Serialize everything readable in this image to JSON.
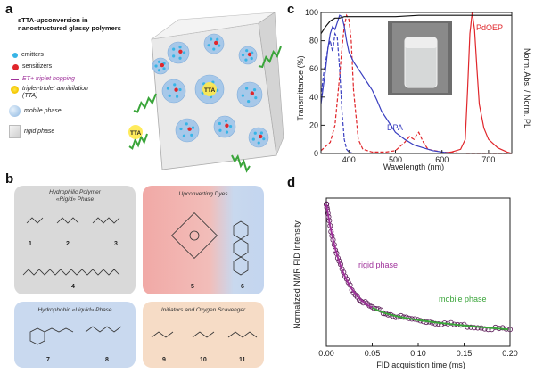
{
  "panels": {
    "a": {
      "letter": "a",
      "title_line1": "sTTA-upconversion in",
      "title_line2": "nanostructured glassy polymers",
      "legend": {
        "emitters": "emitters",
        "sensitizers": "sensitizers",
        "et_hopping": "ET+ triplet hopping",
        "tta_line1": "triplet-triplet annihilation",
        "tta_line2": "(TTA)",
        "mobile": "mobile phase",
        "rigid": "rigid phase"
      },
      "tta_label": "TTA"
    },
    "b": {
      "letter": "b",
      "box_rigid_title_line1": "Hydrophilic Polymer",
      "box_rigid_title_line2": "«Rigid» Phase",
      "box_dyes_title": "Upconverting Dyes",
      "box_liquid_title": "Hydrophobic «Liquid» Phase",
      "box_init_title": "Initiators and Oxygen Scavenger",
      "numbers": [
        "1",
        "2",
        "3",
        "4",
        "5",
        "6",
        "7",
        "8",
        "9",
        "10",
        "11"
      ]
    },
    "c": {
      "letter": "c",
      "ylabel_left": "Transmittance (%)",
      "ylabel_right": "Norm. Abs. / Norm. PL",
      "xlabel": "Wavelength (nm)",
      "label_dpa": "DPA",
      "label_pdoep": "PdOEP"
    },
    "d": {
      "letter": "d",
      "ylabel": "Normalized NMR FID Intensity",
      "xlabel": "FID acquisition time (ms)",
      "label_rigid": "rigid phase",
      "label_mobile": "mobile phase"
    }
  },
  "colors": {
    "blue": "#3a3fc0",
    "red": "#e0262b",
    "green": "#3aa53a",
    "magenta": "#a0329b",
    "grey_box": "#d9d9d9",
    "pink_box": "#f2b8b5",
    "lightblue_box": "#c9d9ef",
    "peach_box": "#f6dcc6"
  },
  "chart_data": [
    {
      "id": "c",
      "type": "line",
      "xlabel": "Wavelength (nm)",
      "ylabel": "Transmittance (%)",
      "ylabel_right": "Norm. Abs. / Norm. PL",
      "xlim": [
        340,
        750
      ],
      "ylim": [
        0,
        100
      ],
      "xticks": [
        400,
        500,
        600,
        700
      ],
      "yticks": [
        0,
        20,
        40,
        60,
        80,
        100
      ],
      "series": [
        {
          "color": "#111111",
          "style": "solid",
          "x": [
            340,
            350,
            360,
            370,
            380,
            390,
            400,
            420,
            450,
            500,
            550,
            600,
            650,
            700,
            750
          ],
          "y": [
            85,
            90,
            94,
            96,
            96,
            97,
            97,
            97,
            97,
            97,
            98,
            98,
            98,
            98,
            98
          ]
        },
        {
          "name": "DPA",
          "color": "#3a3fc0",
          "style": "solid",
          "x": [
            340,
            350,
            355,
            360,
            365,
            370,
            375,
            380,
            385,
            390,
            395,
            400,
            410,
            420,
            430,
            440,
            450,
            460,
            470,
            480,
            490,
            500,
            520,
            540,
            560,
            580,
            600,
            620
          ],
          "y": [
            35,
            60,
            75,
            85,
            90,
            88,
            93,
            98,
            97,
            90,
            80,
            72,
            65,
            60,
            55,
            50,
            45,
            38,
            30,
            25,
            20,
            15,
            10,
            6,
            4,
            2,
            1,
            0
          ]
        },
        {
          "color": "#3a3fc0",
          "style": "dashed",
          "x": [
            340,
            345,
            350,
            355,
            360,
            365,
            370,
            375,
            380,
            385,
            390,
            395,
            400,
            410
          ],
          "y": [
            40,
            55,
            65,
            75,
            80,
            72,
            85,
            82,
            60,
            30,
            10,
            3,
            1,
            0
          ]
        },
        {
          "name": "PdOEP",
          "color": "#e0262b",
          "style": "dashed",
          "x": [
            340,
            360,
            370,
            380,
            385,
            390,
            395,
            400,
            405,
            410,
            420,
            430,
            450,
            480,
            500,
            520,
            530,
            540,
            545,
            550,
            560,
            570,
            600,
            650,
            700,
            750
          ],
          "y": [
            2,
            8,
            20,
            55,
            75,
            90,
            98,
            95,
            80,
            45,
            10,
            3,
            1,
            1,
            2,
            8,
            12,
            10,
            13,
            15,
            8,
            3,
            1,
            0,
            0,
            0
          ]
        },
        {
          "color": "#e0262b",
          "style": "solid",
          "x": [
            600,
            620,
            640,
            650,
            655,
            660,
            665,
            670,
            675,
            680,
            690,
            700,
            720,
            740,
            750
          ],
          "y": [
            0,
            1,
            3,
            10,
            45,
            85,
            100,
            88,
            60,
            35,
            18,
            10,
            4,
            1,
            0
          ]
        }
      ]
    },
    {
      "id": "d",
      "type": "scatter",
      "xlabel": "FID acquisition time (ms)",
      "ylabel": "Normalized NMR FID Intensity",
      "xlim": [
        0,
        0.2
      ],
      "ylim": [
        0,
        1.05
      ],
      "xticks": [
        0.0,
        0.05,
        0.1,
        0.15,
        0.2
      ],
      "xtick_labels": [
        "0.00",
        "0.05",
        "0.10",
        "0.15",
        "0.20"
      ],
      "series": [
        {
          "name": "data",
          "color": "#a0329b",
          "x_start": 0.0,
          "x_end": 0.2,
          "n": 80
        },
        {
          "name": "rigid phase fit",
          "color": "#a0329b",
          "x_range": [
            0,
            0.07
          ]
        },
        {
          "name": "mobile phase fit",
          "color": "#3aa53a",
          "x_range": [
            0.05,
            0.2
          ]
        }
      ],
      "model": {
        "a_rigid": 0.72,
        "t2_rigid": 0.018,
        "a_mobile": 0.28,
        "t2_mobile": 0.22
      }
    }
  ]
}
